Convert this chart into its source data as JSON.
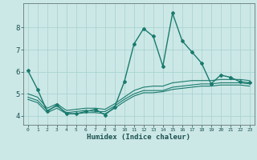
{
  "xlabel": "Humidex (Indice chaleur)",
  "ylabel": "",
  "bg_color": "#cce8e6",
  "grid_color": "#aad4d2",
  "line_color": "#1a7a6e",
  "xlim": [
    -0.5,
    23.5
  ],
  "ylim": [
    3.6,
    9.1
  ],
  "xticks": [
    0,
    1,
    2,
    3,
    4,
    5,
    6,
    7,
    8,
    9,
    10,
    11,
    12,
    13,
    14,
    15,
    16,
    17,
    18,
    19,
    20,
    21,
    22,
    23
  ],
  "yticks": [
    4,
    5,
    6,
    7,
    8
  ],
  "series": [
    [
      6.05,
      5.2,
      4.2,
      4.5,
      4.1,
      4.1,
      4.2,
      4.3,
      4.05,
      4.4,
      5.55,
      7.25,
      7.95,
      7.6,
      6.25,
      8.65,
      7.4,
      6.9,
      6.4,
      5.45,
      5.85,
      5.75,
      5.55,
      5.5
    ],
    [
      5.0,
      4.85,
      4.35,
      4.55,
      4.25,
      4.3,
      4.35,
      4.35,
      4.3,
      4.55,
      4.85,
      5.15,
      5.3,
      5.35,
      5.35,
      5.5,
      5.55,
      5.6,
      5.6,
      5.6,
      5.65,
      5.65,
      5.65,
      5.6
    ],
    [
      4.85,
      4.7,
      4.25,
      4.45,
      4.15,
      4.2,
      4.25,
      4.2,
      4.2,
      4.45,
      4.75,
      5.0,
      5.15,
      5.15,
      5.15,
      5.3,
      5.35,
      5.4,
      5.45,
      5.45,
      5.5,
      5.5,
      5.5,
      5.45
    ],
    [
      4.75,
      4.6,
      4.15,
      4.35,
      4.1,
      4.1,
      4.15,
      4.15,
      4.1,
      4.35,
      4.65,
      4.9,
      5.05,
      5.05,
      5.1,
      5.2,
      5.25,
      5.3,
      5.35,
      5.35,
      5.4,
      5.4,
      5.4,
      5.35
    ]
  ],
  "markers": [
    true,
    false,
    false,
    false
  ],
  "marker_style": "D",
  "marker_size": 2.0,
  "linewidth_main": 1.0,
  "linewidth_other": 0.8,
  "xlabel_fontsize": 6.5,
  "xtick_fontsize": 4.5,
  "ytick_fontsize": 6.5
}
